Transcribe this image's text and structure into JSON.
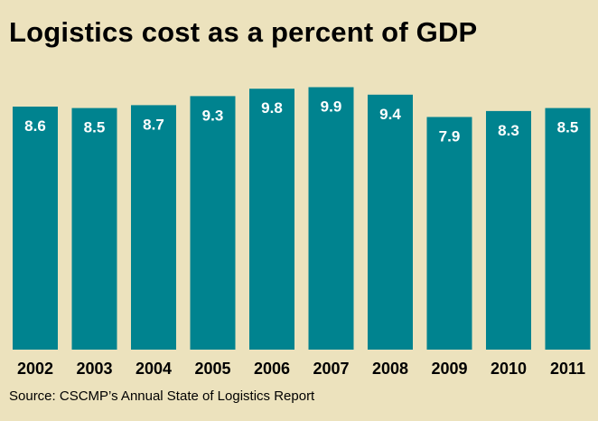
{
  "chart_data": {
    "type": "bar",
    "title": "Logistics cost as a percent of GDP",
    "categories": [
      "2002",
      "2003",
      "2004",
      "2005",
      "2006",
      "2007",
      "2008",
      "2009",
      "2010",
      "2011"
    ],
    "values": [
      8.6,
      8.5,
      8.7,
      9.3,
      9.8,
      9.9,
      9.4,
      7.9,
      8.3,
      8.5
    ],
    "xlabel": "",
    "ylabel": "",
    "source": "Source: CSCMP’s Annual State of Logistics Report",
    "grid": false,
    "legend": "none",
    "bar_color": "#00838f",
    "background_color": "#ece2bd",
    "label_color": "#ffffff"
  }
}
